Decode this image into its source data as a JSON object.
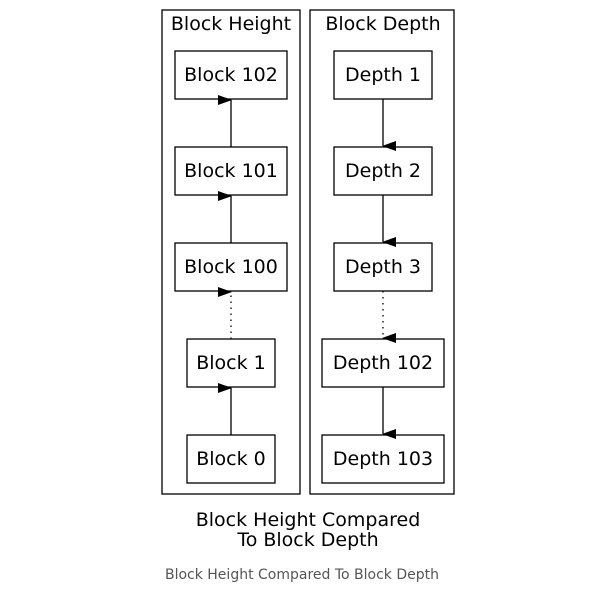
{
  "diagram": {
    "title_line1": "Block Height Compared",
    "title_line2": "To Block Depth",
    "caption": "Block Height Compared To Block Depth",
    "height_panel": {
      "title": "Block Height",
      "nodes": [
        "Block 102",
        "Block 101",
        "Block 100",
        "Block 1",
        "Block 0"
      ]
    },
    "depth_panel": {
      "title": "Block Depth",
      "nodes": [
        "Depth 1",
        "Depth 2",
        "Depth 3",
        "Depth 102",
        "Depth 103"
      ]
    },
    "colors": {
      "stroke": "#000000",
      "caption": "#555555"
    }
  }
}
